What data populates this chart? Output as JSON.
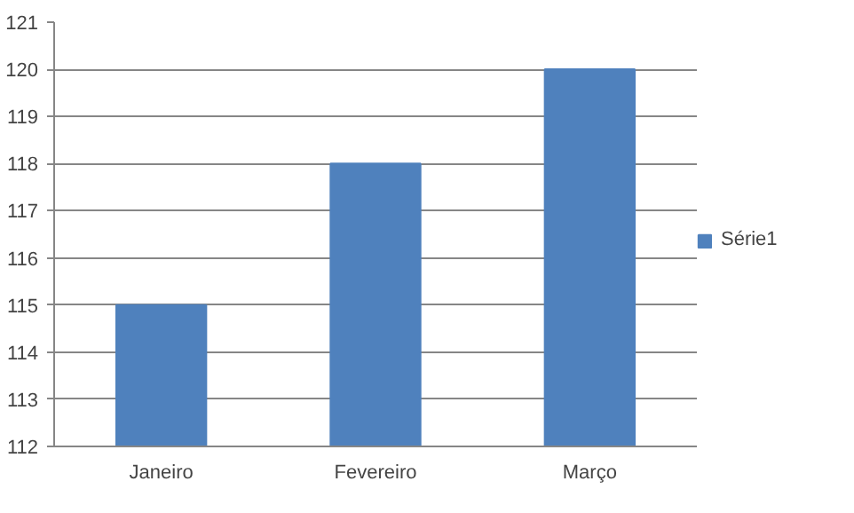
{
  "chart_data": {
    "type": "bar",
    "categories": [
      "Janeiro",
      "Fevereiro",
      "Março"
    ],
    "series": [
      {
        "name": "Série1",
        "color": "#4f81bd",
        "values": [
          115,
          118,
          120
        ]
      }
    ],
    "ylim": [
      112,
      121
    ],
    "yticks": [
      112,
      113,
      114,
      115,
      116,
      117,
      118,
      119,
      120,
      121
    ],
    "grid": "y",
    "legend": "right"
  }
}
